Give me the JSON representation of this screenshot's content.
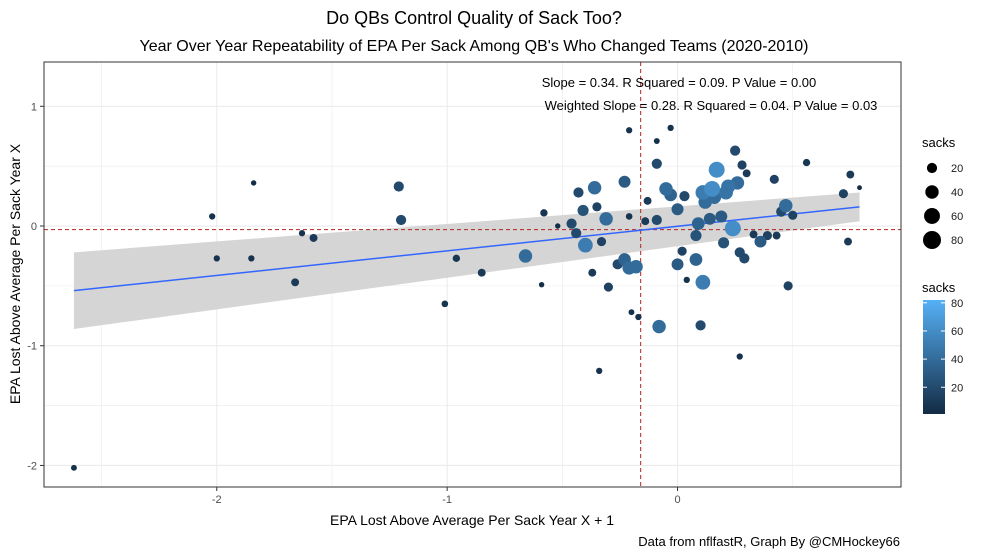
{
  "chart_data": {
    "type": "scatter",
    "title": "Do QBs Control Quality of Sack Too?",
    "subtitle": "Year Over Year Repeatability of EPA Per Sack Among QB's Who Changed Teams (2020-2010)",
    "xlabel": "EPA Lost Above Average Per Sack Year X + 1",
    "ylabel": "EPA Lost Above Average Per Sack Year X",
    "caption": "Data from nflfastR, Graph By @CMHockey66",
    "annotation_line1": "Slope = 0.34. R Squared = 0.09. P Value = 0.00",
    "annotation_line2": "Weighted Slope = 0.28. R Squared = 0.04. P Value = 0.03",
    "xlim": [
      -2.75,
      0.97
    ],
    "ylim": [
      -2.18,
      1.37
    ],
    "x_ticks": [
      -2,
      -1,
      0
    ],
    "x_tick_labels": [
      "-2",
      "-1",
      "0"
    ],
    "y_ticks": [
      1,
      0,
      -1,
      -2
    ],
    "y_tick_labels": [
      "1",
      "0",
      "-1",
      "-2"
    ],
    "grid": true,
    "mean_x": -0.16,
    "mean_y": -0.03,
    "trend": {
      "x": [
        -2.62,
        0.79
      ],
      "y": [
        -0.54,
        0.16
      ]
    },
    "ci_band": {
      "x": [
        -2.62,
        0.79
      ],
      "upper": [
        -0.22,
        0.28
      ],
      "lower": [
        -0.86,
        0.04
      ]
    },
    "legend_size_title": "sacks",
    "legend_size_values": [
      20,
      40,
      60,
      80
    ],
    "legend_color_title": "sacks",
    "legend_color_ticks": [
      20,
      40,
      60,
      80
    ],
    "colors": {
      "low": "#132B43",
      "high": "#56B1F7",
      "trend": "#3366FF",
      "band": "#D3D3D3",
      "refline": "#B22222",
      "panel_border": "#333333",
      "grid": "#EBEBEB"
    },
    "points": [
      {
        "x": -2.62,
        "y": -2.02,
        "s": 4
      },
      {
        "x": -2.02,
        "y": 0.08,
        "s": 5
      },
      {
        "x": -2.0,
        "y": -0.27,
        "s": 5
      },
      {
        "x": -1.84,
        "y": 0.36,
        "s": 3
      },
      {
        "x": -1.85,
        "y": -0.27,
        "s": 5
      },
      {
        "x": -1.66,
        "y": -0.47,
        "s": 10
      },
      {
        "x": -1.63,
        "y": -0.06,
        "s": 5
      },
      {
        "x": -1.58,
        "y": -0.1,
        "s": 10
      },
      {
        "x": -1.21,
        "y": 0.33,
        "s": 20
      },
      {
        "x": -1.2,
        "y": 0.05,
        "s": 20
      },
      {
        "x": -1.01,
        "y": -0.65,
        "s": 6
      },
      {
        "x": -0.96,
        "y": -0.27,
        "s": 8
      },
      {
        "x": -0.85,
        "y": -0.39,
        "s": 10
      },
      {
        "x": -0.66,
        "y": -0.25,
        "s": 40
      },
      {
        "x": -0.58,
        "y": 0.11,
        "s": 8
      },
      {
        "x": -0.59,
        "y": -0.49,
        "s": 3
      },
      {
        "x": -0.52,
        "y": 0.0,
        "s": 3
      },
      {
        "x": -0.46,
        "y": 0.02,
        "s": 20
      },
      {
        "x": -0.43,
        "y": 0.28,
        "s": 20
      },
      {
        "x": -0.41,
        "y": 0.13,
        "s": 25
      },
      {
        "x": -0.44,
        "y": -0.06,
        "s": 20
      },
      {
        "x": -0.36,
        "y": 0.32,
        "s": 40
      },
      {
        "x": -0.35,
        "y": 0.16,
        "s": 15
      },
      {
        "x": -0.33,
        "y": -0.13,
        "s": 15
      },
      {
        "x": -0.31,
        "y": 0.06,
        "s": 40
      },
      {
        "x": -0.4,
        "y": -0.16,
        "s": 50
      },
      {
        "x": -0.37,
        "y": -0.39,
        "s": 10
      },
      {
        "x": -0.3,
        "y": -0.51,
        "s": 15
      },
      {
        "x": -0.26,
        "y": -0.32,
        "s": 20
      },
      {
        "x": -0.34,
        "y": -1.21,
        "s": 5
      },
      {
        "x": -0.23,
        "y": 0.37,
        "s": 30
      },
      {
        "x": -0.21,
        "y": 0.8,
        "s": 5
      },
      {
        "x": -0.21,
        "y": 0.08,
        "s": 6
      },
      {
        "x": -0.23,
        "y": -0.28,
        "s": 35
      },
      {
        "x": -0.21,
        "y": -0.35,
        "s": 40
      },
      {
        "x": -0.18,
        "y": -0.34,
        "s": 40
      },
      {
        "x": -0.2,
        "y": -0.72,
        "s": 4
      },
      {
        "x": -0.17,
        "y": -0.76,
        "s": 5
      },
      {
        "x": -0.14,
        "y": 0.04,
        "s": 10
      },
      {
        "x": -0.13,
        "y": 0.21,
        "s": 10
      },
      {
        "x": -0.09,
        "y": 0.71,
        "s": 4
      },
      {
        "x": -0.09,
        "y": 0.52,
        "s": 20
      },
      {
        "x": -0.09,
        "y": 0.05,
        "s": 20
      },
      {
        "x": -0.08,
        "y": -0.84,
        "s": 40
      },
      {
        "x": -0.03,
        "y": 0.82,
        "s": 5
      },
      {
        "x": -0.05,
        "y": 0.31,
        "s": 40
      },
      {
        "x": -0.03,
        "y": 0.26,
        "s": 35
      },
      {
        "x": 0.0,
        "y": 0.14,
        "s": 30
      },
      {
        "x": 0.03,
        "y": 0.25,
        "s": 20
      },
      {
        "x": 0.0,
        "y": -0.32,
        "s": 30
      },
      {
        "x": 0.02,
        "y": -0.21,
        "s": 15
      },
      {
        "x": 0.04,
        "y": -0.45,
        "s": 5
      },
      {
        "x": 0.08,
        "y": -0.08,
        "s": 25
      },
      {
        "x": 0.08,
        "y": -0.28,
        "s": 35
      },
      {
        "x": 0.09,
        "y": 0.02,
        "s": 35
      },
      {
        "x": 0.11,
        "y": 0.28,
        "s": 50
      },
      {
        "x": 0.12,
        "y": 0.2,
        "s": 40
      },
      {
        "x": 0.1,
        "y": -0.83,
        "s": 20
      },
      {
        "x": 0.11,
        "y": -0.47,
        "s": 50
      },
      {
        "x": 0.15,
        "y": 0.31,
        "s": 60
      },
      {
        "x": 0.16,
        "y": 0.24,
        "s": 40
      },
      {
        "x": 0.14,
        "y": 0.06,
        "s": 30
      },
      {
        "x": 0.17,
        "y": 0.47,
        "s": 60
      },
      {
        "x": 0.19,
        "y": 0.08,
        "s": 30
      },
      {
        "x": 0.2,
        "y": -0.14,
        "s": 25
      },
      {
        "x": 0.21,
        "y": 0.28,
        "s": 45
      },
      {
        "x": 0.22,
        "y": 0.33,
        "s": 45
      },
      {
        "x": 0.24,
        "y": -0.02,
        "s": 60
      },
      {
        "x": 0.26,
        "y": 0.36,
        "s": 40
      },
      {
        "x": 0.25,
        "y": 0.63,
        "s": 20
      },
      {
        "x": 0.27,
        "y": -0.22,
        "s": 20
      },
      {
        "x": 0.28,
        "y": 0.51,
        "s": 15
      },
      {
        "x": 0.29,
        "y": -0.27,
        "s": 20
      },
      {
        "x": 0.3,
        "y": 0.44,
        "s": 10
      },
      {
        "x": 0.27,
        "y": -1.09,
        "s": 5
      },
      {
        "x": 0.33,
        "y": -0.07,
        "s": 10
      },
      {
        "x": 0.36,
        "y": -0.13,
        "s": 30
      },
      {
        "x": 0.39,
        "y": -0.08,
        "s": 15
      },
      {
        "x": 0.43,
        "y": -0.08,
        "s": 10
      },
      {
        "x": 0.42,
        "y": 0.39,
        "s": 15
      },
      {
        "x": 0.45,
        "y": 0.12,
        "s": 20
      },
      {
        "x": 0.47,
        "y": 0.17,
        "s": 40
      },
      {
        "x": 0.5,
        "y": 0.09,
        "s": 15
      },
      {
        "x": 0.48,
        "y": -0.5,
        "s": 15
      },
      {
        "x": 0.56,
        "y": 0.53,
        "s": 8
      },
      {
        "x": 0.72,
        "y": 0.27,
        "s": 15
      },
      {
        "x": 0.75,
        "y": 0.43,
        "s": 10
      },
      {
        "x": 0.74,
        "y": -0.13,
        "s": 10
      },
      {
        "x": 0.79,
        "y": 0.32,
        "s": 2
      }
    ]
  }
}
